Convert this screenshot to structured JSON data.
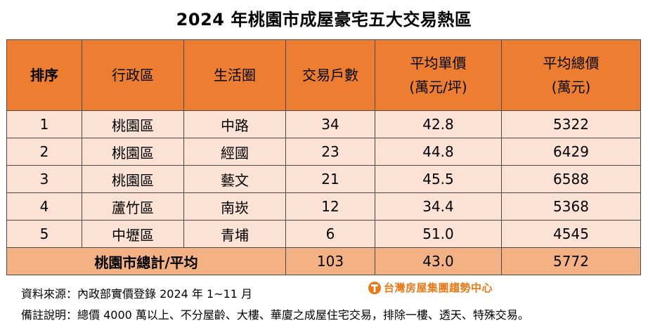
{
  "title": "2024 年桃園市成屋豪宅五大交易熱區",
  "table": {
    "headers": {
      "rank": "排序",
      "district": "行政區",
      "area": "生活圈",
      "count": "交易戶數",
      "unit_price_line1": "平均單價",
      "unit_price_line2": "(萬元/坪)",
      "total_price_line1": "平均總價",
      "total_price_line2": "(萬元)"
    },
    "rows": [
      {
        "rank": "1",
        "district": "桃園區",
        "area": "中路",
        "count": "34",
        "unit_price": "42.8",
        "total_price": "5322"
      },
      {
        "rank": "2",
        "district": "桃園區",
        "area": "經國",
        "count": "23",
        "unit_price": "44.8",
        "total_price": "6429"
      },
      {
        "rank": "3",
        "district": "桃園區",
        "area": "藝文",
        "count": "21",
        "unit_price": "45.5",
        "total_price": "6588"
      },
      {
        "rank": "4",
        "district": "蘆竹區",
        "area": "南崁",
        "count": "12",
        "unit_price": "34.4",
        "total_price": "5368"
      },
      {
        "rank": "5",
        "district": "中壢區",
        "area": "青埔",
        "count": "6",
        "unit_price": "51.0",
        "total_price": "4545"
      }
    ],
    "total": {
      "label": "桃園市總計/平均",
      "count": "103",
      "unit_price": "43.0",
      "total_price": "5772"
    }
  },
  "notes": {
    "source": "資料來源：內政部實價登錄 2024 年 1~11 月",
    "remark": "備註說明：總價 4000 萬以上、不分屋齡、大樓、華廈之成屋住宅交易，排除一樓、透天、特殊交易。"
  },
  "logo": {
    "text": "台灣房屋集團趨勢中心",
    "color": "#e87a1a"
  },
  "colors": {
    "header_bg": "#ed7d31",
    "row_bg": "#fbe2d5",
    "total_bg": "#f4b183"
  }
}
